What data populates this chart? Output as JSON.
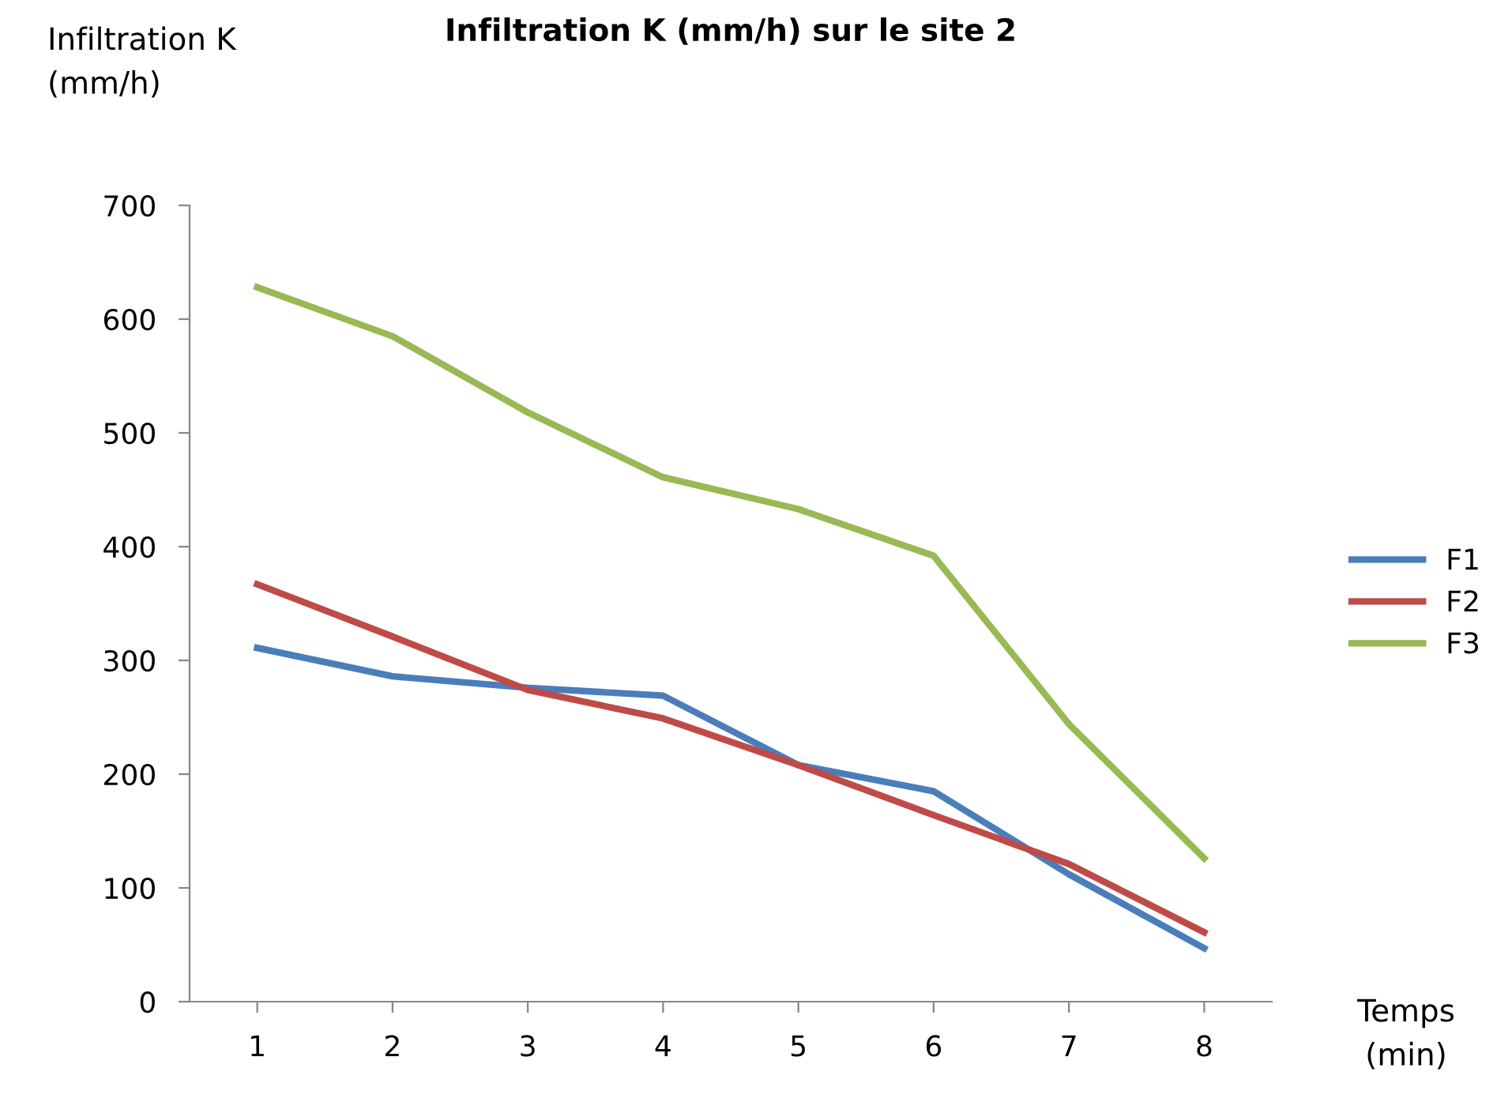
{
  "chart_data": {
    "type": "line",
    "title": "Infiltration K (mm/h) sur le site 2",
    "ylabel": "Infiltration K\n(mm/h)",
    "xlabel": "Temps\n(min)",
    "categories": [
      "1",
      "2",
      "3",
      "4",
      "5",
      "6",
      "7",
      "8"
    ],
    "series": [
      {
        "name": "F1",
        "color": "#4a7ebb",
        "values": [
          311,
          286,
          276,
          269,
          208,
          185,
          112,
          47
        ]
      },
      {
        "name": "F2",
        "color": "#be4b48",
        "values": [
          367,
          321,
          274,
          249,
          208,
          164,
          121,
          61
        ]
      },
      {
        "name": "F3",
        "color": "#98b954",
        "values": [
          628,
          585,
          518,
          461,
          433,
          392,
          244,
          126
        ]
      }
    ],
    "ylim": [
      0,
      700
    ],
    "yticks": [
      0,
      100,
      200,
      300,
      400,
      500,
      600,
      700
    ],
    "grid": false,
    "legend": "right",
    "marker": "none",
    "line_style": "solid"
  }
}
